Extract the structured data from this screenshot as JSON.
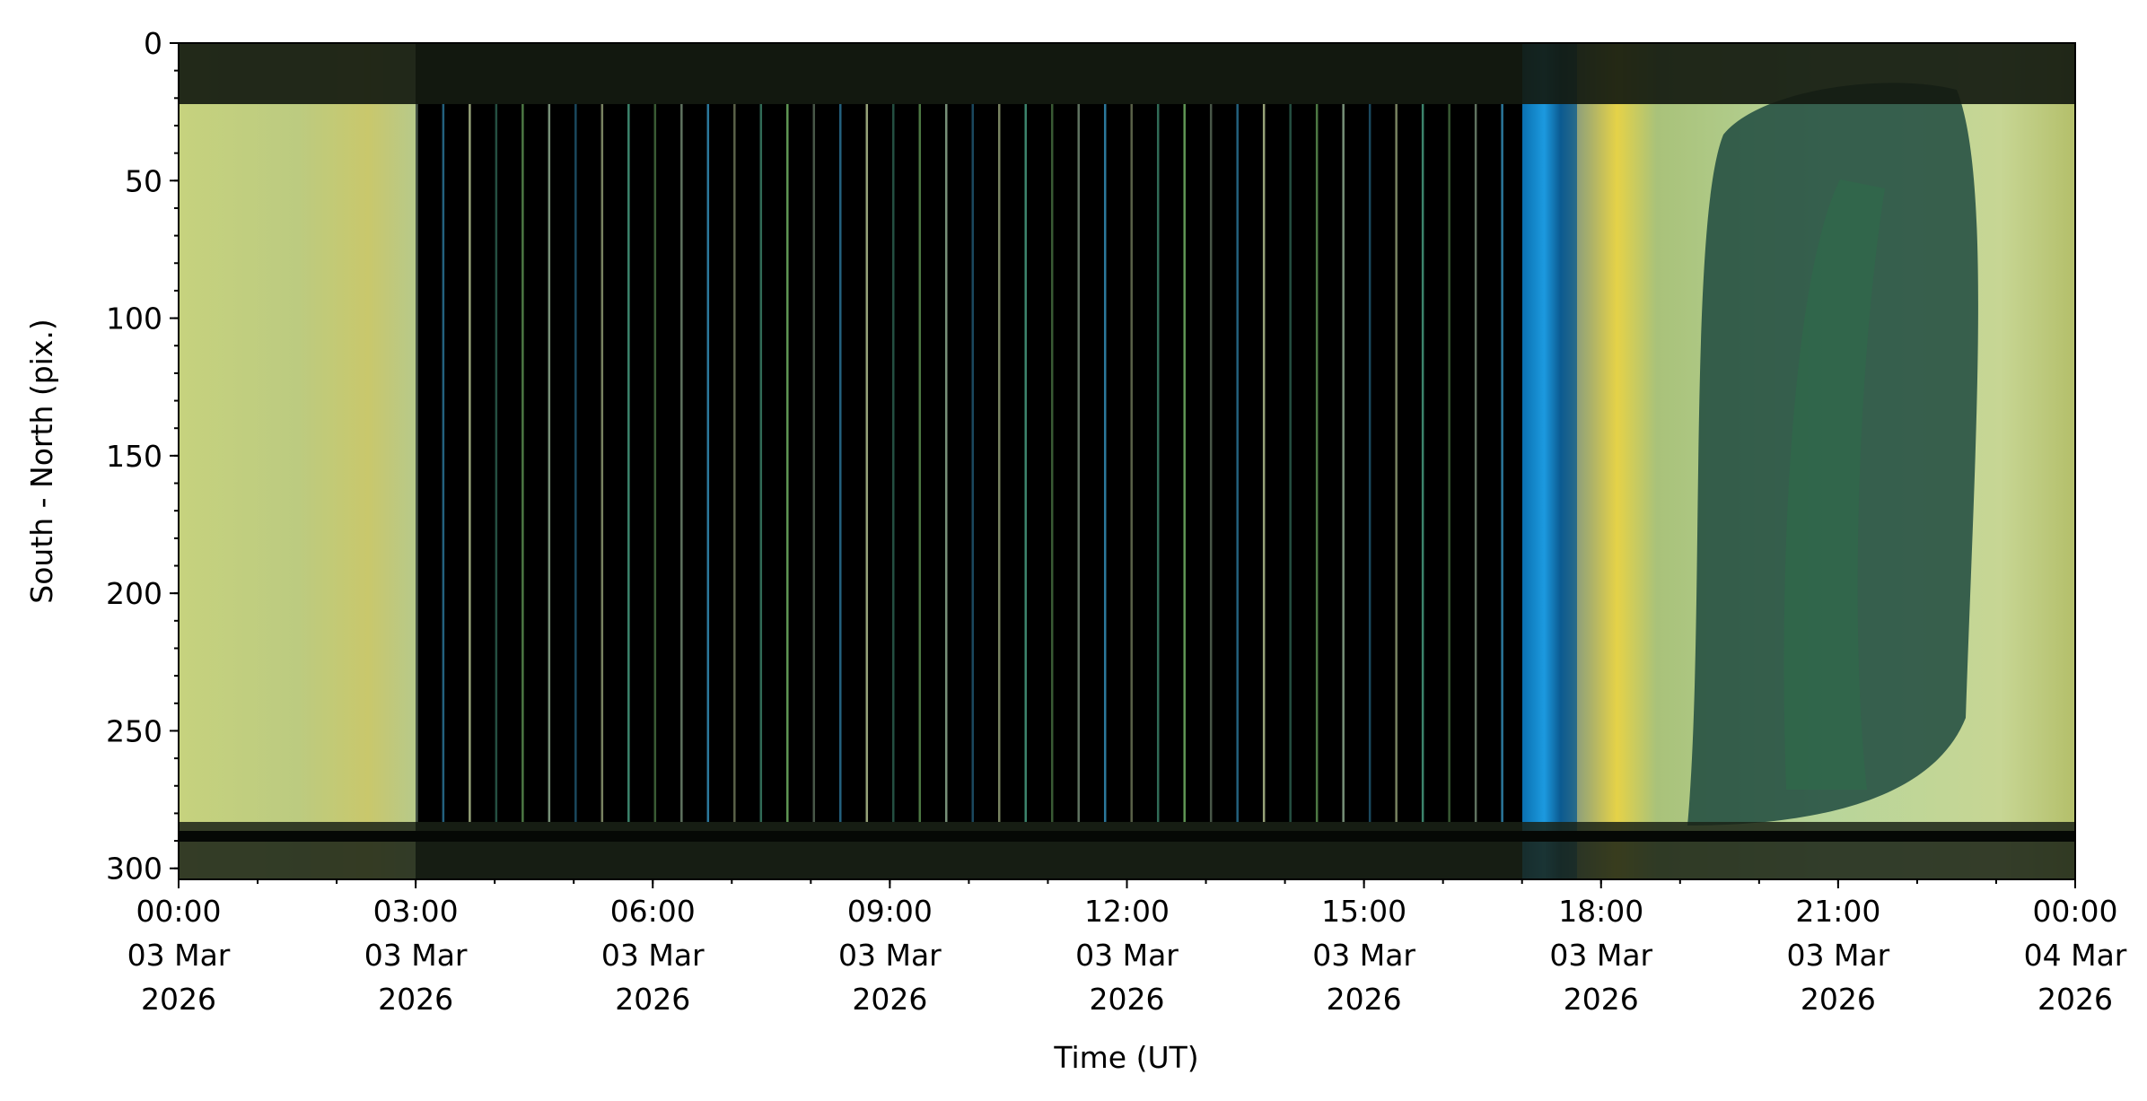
{
  "chart_data": {
    "type": "keogram",
    "xlabel": "Time (UT)",
    "ylabel": "South - North (pix.)",
    "xlim": [
      "2026-03-03T00:00",
      "2026-03-04T00:00"
    ],
    "xticks": [
      {
        "value": "2026-03-03T00:00",
        "label": [
          "00:00",
          "03 Mar",
          "2026"
        ]
      },
      {
        "value": "2026-03-03T03:00",
        "label": [
          "03:00",
          "03 Mar",
          "2026"
        ]
      },
      {
        "value": "2026-03-03T06:00",
        "label": [
          "06:00",
          "03 Mar",
          "2026"
        ]
      },
      {
        "value": "2026-03-03T09:00",
        "label": [
          "09:00",
          "03 Mar",
          "2026"
        ]
      },
      {
        "value": "2026-03-03T12:00",
        "label": [
          "12:00",
          "03 Mar",
          "2026"
        ]
      },
      {
        "value": "2026-03-03T15:00",
        "label": [
          "15:00",
          "03 Mar",
          "2026"
        ]
      },
      {
        "value": "2026-03-03T18:00",
        "label": [
          "18:00",
          "03 Mar",
          "2026"
        ]
      },
      {
        "value": "2026-03-03T21:00",
        "label": [
          "21:00",
          "03 Mar",
          "2026"
        ]
      },
      {
        "value": "2026-03-04T00:00",
        "label": [
          "00:00",
          "04 Mar",
          "2026"
        ]
      }
    ],
    "ylim": [
      304,
      0
    ],
    "yticks": [
      0,
      50,
      100,
      150,
      200,
      250,
      300
    ]
  }
}
